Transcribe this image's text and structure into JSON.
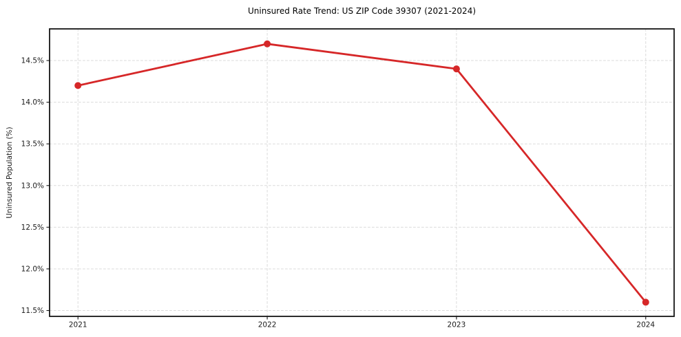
{
  "chart_data": {
    "type": "line",
    "title": "Uninsured Rate Trend: US ZIP Code 39307 (2021-2024)",
    "xlabel": "",
    "ylabel": "Uninsured Population (%)",
    "x": [
      2021,
      2022,
      2023,
      2024
    ],
    "values": [
      14.2,
      14.7,
      14.4,
      11.6
    ],
    "xtick_labels": [
      "2021",
      "2022",
      "2023",
      "2024"
    ],
    "yticks": [
      11.5,
      12.0,
      12.5,
      13.0,
      13.5,
      14.0,
      14.5
    ],
    "ytick_labels": [
      "11.5%",
      "12.0%",
      "12.5%",
      "13.0%",
      "13.5%",
      "14.0%",
      "14.5%"
    ],
    "xlim": [
      2020.85,
      2024.15
    ],
    "ylim": [
      11.43,
      14.88
    ],
    "grid": true,
    "grid_style": "dashed",
    "legend": false,
    "marker": "o",
    "colors": {
      "line": "#d62728",
      "marker": "#d62728",
      "grid": "#dbdbdb",
      "spine": "#141414",
      "tick_text": "#1a1a1a",
      "background": "#ffffff"
    }
  }
}
